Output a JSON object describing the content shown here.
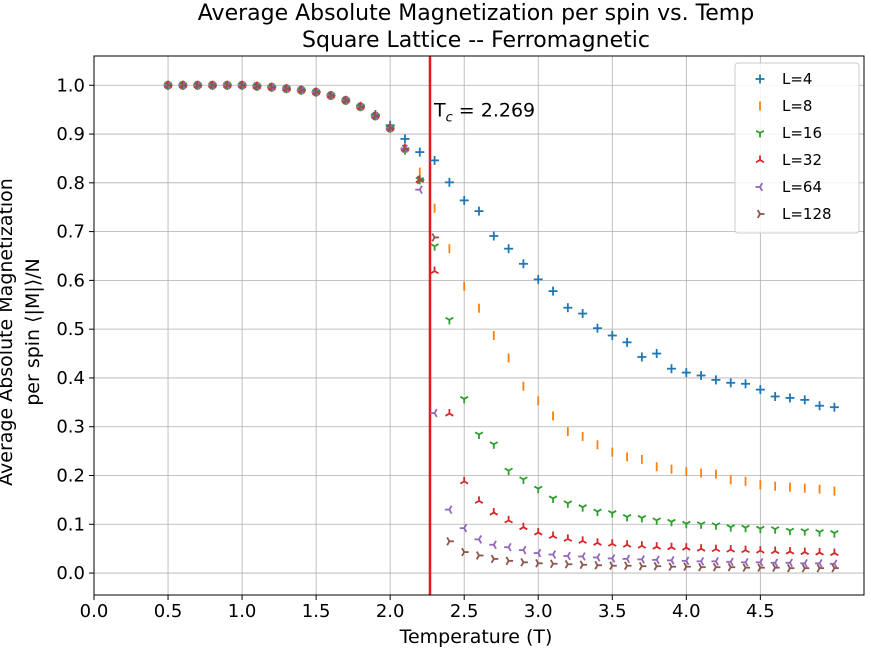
{
  "chart_data": {
    "type": "scatter",
    "title": "Average Absolute Magnetization per spin vs. Temp",
    "subtitle": "Square Lattice -- Ferromagnetic",
    "xlabel": "Temperature (T)",
    "ylabel_line1": "Average Absolute Magnetization",
    "ylabel_line2": "per spin ⟨|M|⟩/N",
    "xlim": [
      0.0,
      5.2
    ],
    "ylim": [
      -0.045,
      1.06
    ],
    "xticks": [
      0.0,
      0.5,
      1.0,
      1.5,
      2.0,
      2.5,
      3.0,
      3.5,
      4.0,
      4.5
    ],
    "xtick_labels": [
      "0.0",
      "0.5",
      "1.0",
      "1.5",
      "2.0",
      "2.5",
      "3.0",
      "3.5",
      "4.0",
      "4.5"
    ],
    "yticks": [
      0.0,
      0.1,
      0.2,
      0.3,
      0.4,
      0.5,
      0.6,
      0.7,
      0.8,
      0.9,
      1.0
    ],
    "ytick_labels": [
      "0.0",
      "0.1",
      "0.2",
      "0.3",
      "0.4",
      "0.5",
      "0.6",
      "0.7",
      "0.8",
      "0.9",
      "1.0"
    ],
    "grid": true,
    "legend_position": "top-right",
    "critical_line": {
      "x": 2.269,
      "label_main": "T",
      "label_sub": "c",
      "label_rest": " = 2.269",
      "color": "#e31a1c"
    },
    "x": [
      0.5,
      0.6,
      0.7,
      0.8,
      0.9,
      1.0,
      1.1,
      1.2,
      1.3,
      1.4,
      1.5,
      1.6,
      1.7,
      1.8,
      1.9,
      2.0,
      2.1,
      2.2,
      2.3,
      2.4,
      2.5,
      2.6,
      2.7,
      2.8,
      2.9,
      3.0,
      3.1,
      3.2,
      3.3,
      3.4,
      3.5,
      3.6,
      3.7,
      3.8,
      3.9,
      4.0,
      4.1,
      4.2,
      4.3,
      4.4,
      4.5,
      4.6,
      4.7,
      4.8,
      4.9,
      5.0
    ],
    "series": [
      {
        "name": "L=4",
        "marker": "plus",
        "color": "#1f77b4",
        "values": [
          1.0,
          1.0,
          1.0,
          1.0,
          1.0,
          1.0,
          0.998,
          0.996,
          0.993,
          0.99,
          0.986,
          0.979,
          0.969,
          0.957,
          0.94,
          0.918,
          0.89,
          0.863,
          0.846,
          0.801,
          0.764,
          0.742,
          0.691,
          0.665,
          0.634,
          0.602,
          0.578,
          0.544,
          0.532,
          0.502,
          0.487,
          0.473,
          0.443,
          0.45,
          0.419,
          0.411,
          0.405,
          0.396,
          0.39,
          0.388,
          0.376,
          0.362,
          0.359,
          0.355,
          0.343,
          0.34
        ]
      },
      {
        "name": "L=8",
        "marker": "vline",
        "color": "#ff7f0e",
        "values": [
          1.0,
          1.0,
          1.0,
          1.0,
          1.0,
          1.0,
          0.998,
          0.996,
          0.993,
          0.99,
          0.986,
          0.979,
          0.969,
          0.956,
          0.937,
          0.912,
          0.872,
          0.822,
          0.748,
          0.665,
          0.588,
          0.543,
          0.487,
          0.441,
          0.383,
          0.353,
          0.322,
          0.29,
          0.28,
          0.263,
          0.248,
          0.238,
          0.233,
          0.218,
          0.213,
          0.208,
          0.205,
          0.203,
          0.191,
          0.188,
          0.181,
          0.178,
          0.176,
          0.174,
          0.172,
          0.168
        ]
      },
      {
        "name": "L=16",
        "marker": "tri_down",
        "color": "#2ca02c",
        "values": [
          1.0,
          1.0,
          1.0,
          1.0,
          1.0,
          1.0,
          0.998,
          0.996,
          0.993,
          0.99,
          0.986,
          0.979,
          0.969,
          0.956,
          0.937,
          0.912,
          0.867,
          0.806,
          0.67,
          0.519,
          0.357,
          0.284,
          0.264,
          0.21,
          0.192,
          0.173,
          0.153,
          0.143,
          0.135,
          0.126,
          0.123,
          0.115,
          0.113,
          0.108,
          0.105,
          0.101,
          0.1,
          0.098,
          0.094,
          0.093,
          0.091,
          0.09,
          0.087,
          0.086,
          0.084,
          0.082
        ]
      },
      {
        "name": "L=32",
        "marker": "tri_up",
        "color": "#d62728",
        "values": [
          1.0,
          1.0,
          1.0,
          1.0,
          1.0,
          1.0,
          0.998,
          0.996,
          0.993,
          0.99,
          0.986,
          0.979,
          0.969,
          0.956,
          0.937,
          0.912,
          0.87,
          0.806,
          0.619,
          0.327,
          0.188,
          0.148,
          0.124,
          0.108,
          0.094,
          0.083,
          0.076,
          0.07,
          0.066,
          0.062,
          0.06,
          0.058,
          0.056,
          0.054,
          0.053,
          0.052,
          0.05,
          0.049,
          0.048,
          0.047,
          0.046,
          0.045,
          0.044,
          0.043,
          0.042,
          0.041
        ]
      },
      {
        "name": "L=64",
        "marker": "tri_left",
        "color": "#9467bd",
        "values": [
          1.0,
          1.0,
          1.0,
          1.0,
          1.0,
          1.0,
          0.998,
          0.996,
          0.993,
          0.99,
          0.986,
          0.979,
          0.969,
          0.956,
          0.937,
          0.912,
          0.87,
          0.786,
          0.328,
          0.13,
          0.092,
          0.069,
          0.058,
          0.053,
          0.047,
          0.041,
          0.038,
          0.035,
          0.034,
          0.032,
          0.03,
          0.029,
          0.028,
          0.027,
          0.026,
          0.025,
          0.024,
          0.024,
          0.023,
          0.022,
          0.022,
          0.021,
          0.021,
          0.02,
          0.02,
          0.019
        ]
      },
      {
        "name": "L=128",
        "marker": "tri_right",
        "color": "#8c564b",
        "values": [
          1.0,
          1.0,
          1.0,
          1.0,
          1.0,
          1.0,
          0.998,
          0.996,
          0.993,
          0.99,
          0.986,
          0.979,
          0.969,
          0.956,
          0.937,
          0.912,
          0.87,
          0.806,
          0.688,
          0.065,
          0.043,
          0.036,
          0.029,
          0.025,
          0.022,
          0.02,
          0.019,
          0.018,
          0.017,
          0.016,
          0.015,
          0.015,
          0.014,
          0.014,
          0.013,
          0.013,
          0.012,
          0.012,
          0.012,
          0.011,
          0.011,
          0.011,
          0.01,
          0.01,
          0.01,
          0.01
        ]
      }
    ]
  }
}
